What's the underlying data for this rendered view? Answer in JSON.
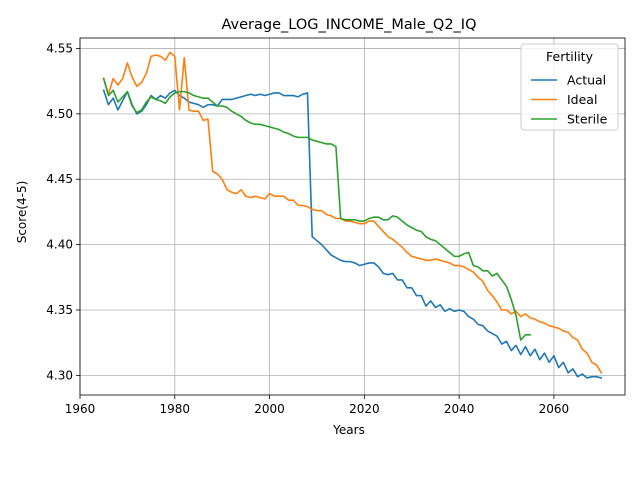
{
  "chart_data": {
    "type": "line",
    "title": "Average_LOG_INCOME_Male_Q2_IQ",
    "xlabel": "Years",
    "ylabel": "Score(4-5)",
    "xlim": [
      1960,
      2075
    ],
    "ylim": [
      4.285,
      4.558
    ],
    "xticks": [
      1960,
      1980,
      2000,
      2020,
      2040,
      2060
    ],
    "yticks": [
      4.3,
      4.35,
      4.4,
      4.45,
      4.5,
      4.55
    ],
    "xtick_labels": [
      "1960",
      "1980",
      "2000",
      "2020",
      "2040",
      "2060"
    ],
    "ytick_labels": [
      "4.30",
      "4.35",
      "4.40",
      "4.45",
      "4.50",
      "4.55"
    ],
    "grid": true,
    "legend": {
      "title": "Fertility",
      "position": "top-right"
    },
    "x": [
      1965,
      1966,
      1967,
      1968,
      1969,
      1970,
      1971,
      1972,
      1973,
      1974,
      1975,
      1976,
      1977,
      1978,
      1979,
      1980,
      1981,
      1982,
      1983,
      1984,
      1985,
      1986,
      1987,
      1988,
      1989,
      1990,
      1991,
      1992,
      1993,
      1994,
      1995,
      1996,
      1997,
      1998,
      1999,
      2000,
      2001,
      2002,
      2003,
      2004,
      2005,
      2006,
      2007,
      2008,
      2009,
      2010,
      2011,
      2012,
      2013,
      2014,
      2015,
      2016,
      2017,
      2018,
      2019,
      2020,
      2021,
      2022,
      2023,
      2024,
      2025,
      2026,
      2027,
      2028,
      2029,
      2030,
      2031,
      2032,
      2033,
      2034,
      2035,
      2036,
      2037,
      2038,
      2039,
      2040,
      2041,
      2042,
      2043,
      2044,
      2045,
      2046,
      2047,
      2048,
      2049,
      2050,
      2051,
      2052,
      2053,
      2054,
      2055,
      2056,
      2057,
      2058,
      2059,
      2060,
      2061,
      2062,
      2063,
      2064,
      2065,
      2066,
      2067,
      2068,
      2069,
      2070
    ],
    "series": [
      {
        "name": "Actual",
        "color": "#1f77b4",
        "values": [
          4.518,
          4.507,
          4.512,
          4.503,
          4.51,
          4.517,
          4.507,
          4.5,
          4.502,
          4.507,
          4.514,
          4.511,
          4.514,
          4.512,
          4.516,
          4.518,
          4.514,
          4.512,
          4.509,
          4.508,
          4.507,
          4.505,
          4.507,
          4.507,
          4.506,
          4.511,
          4.511,
          4.511,
          4.512,
          4.513,
          4.514,
          4.515,
          4.514,
          4.515,
          4.514,
          4.515,
          4.516,
          4.516,
          4.514,
          4.514,
          4.514,
          4.513,
          4.515,
          4.516,
          4.406,
          4.403,
          4.4,
          4.396,
          4.392,
          4.39,
          4.388,
          4.387,
          4.387,
          4.386,
          4.384,
          4.385,
          4.386,
          4.386,
          4.383,
          4.378,
          4.377,
          4.378,
          4.373,
          4.373,
          4.367,
          4.367,
          4.361,
          4.361,
          4.353,
          4.357,
          4.352,
          4.354,
          4.349,
          4.351,
          4.349,
          4.35,
          4.349,
          4.345,
          4.343,
          4.339,
          4.338,
          4.334,
          4.332,
          4.33,
          4.324,
          4.326,
          4.319,
          4.323,
          4.316,
          4.322,
          4.315,
          4.32,
          4.312,
          4.317,
          4.31,
          4.315,
          4.306,
          4.31,
          4.302,
          4.305,
          4.299,
          4.301,
          4.298,
          4.299,
          4.299,
          4.298
        ]
      },
      {
        "name": "Ideal",
        "color": "#ff7f0e",
        "values": [
          4.527,
          4.515,
          4.527,
          4.522,
          4.527,
          4.539,
          4.528,
          4.521,
          4.524,
          4.531,
          4.544,
          4.545,
          4.544,
          4.541,
          4.547,
          4.544,
          4.503,
          4.543,
          4.503,
          4.502,
          4.502,
          4.495,
          4.496,
          4.456,
          4.454,
          4.45,
          4.442,
          4.44,
          4.439,
          4.442,
          4.437,
          4.436,
          4.437,
          4.436,
          4.435,
          4.439,
          4.437,
          4.437,
          4.437,
          4.434,
          4.434,
          4.43,
          4.43,
          4.429,
          4.427,
          4.426,
          4.426,
          4.423,
          4.422,
          4.42,
          4.42,
          4.418,
          4.418,
          4.417,
          4.416,
          4.416,
          4.418,
          4.418,
          4.414,
          4.41,
          4.406,
          4.404,
          4.401,
          4.398,
          4.394,
          4.391,
          4.39,
          4.389,
          4.388,
          4.388,
          4.389,
          4.388,
          4.387,
          4.386,
          4.384,
          4.384,
          4.383,
          4.381,
          4.379,
          4.375,
          4.372,
          4.365,
          4.361,
          4.356,
          4.35,
          4.35,
          4.347,
          4.349,
          4.345,
          4.347,
          4.344,
          4.343,
          4.341,
          4.34,
          4.338,
          4.337,
          4.336,
          4.334,
          4.333,
          4.329,
          4.327,
          4.32,
          4.317,
          4.31,
          4.308,
          4.302
        ]
      },
      {
        "name": "Sterile",
        "color": "#2ca02c",
        "values": [
          4.527,
          4.514,
          4.518,
          4.509,
          4.513,
          4.517,
          4.506,
          4.501,
          4.503,
          4.509,
          4.513,
          4.511,
          4.51,
          4.508,
          4.513,
          4.516,
          4.517,
          4.517,
          4.516,
          4.514,
          4.513,
          4.512,
          4.512,
          4.509,
          4.506,
          4.506,
          4.505,
          4.502,
          4.5,
          4.498,
          4.495,
          4.493,
          4.492,
          4.492,
          4.491,
          4.49,
          4.489,
          4.488,
          4.486,
          4.485,
          4.483,
          4.482,
          4.482,
          4.482,
          4.48,
          4.479,
          4.478,
          4.477,
          4.477,
          4.475,
          4.42,
          4.419,
          4.419,
          4.419,
          4.418,
          4.418,
          4.42,
          4.421,
          4.421,
          4.419,
          4.419,
          4.422,
          4.421,
          4.418,
          4.415,
          4.413,
          4.411,
          4.41,
          4.406,
          4.404,
          4.403,
          4.4,
          4.397,
          4.394,
          4.391,
          4.391,
          4.393,
          4.394,
          4.384,
          4.383,
          4.38,
          4.38,
          4.376,
          4.378,
          4.373,
          4.368,
          4.358,
          4.346,
          4.327,
          4.331,
          4.331,
          null,
          null,
          null,
          null,
          null,
          null,
          null,
          null,
          null,
          null,
          null,
          null,
          null,
          null,
          null
        ]
      }
    ]
  }
}
